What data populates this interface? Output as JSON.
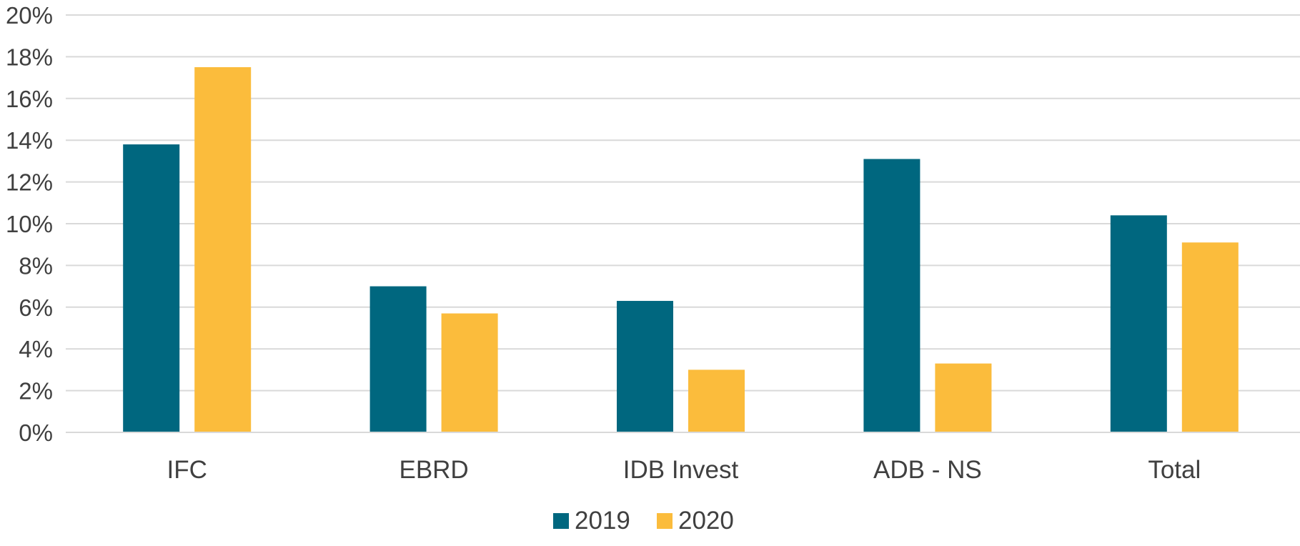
{
  "chart_data": {
    "type": "bar",
    "categories": [
      "IFC",
      "EBRD",
      "IDB Invest",
      "ADB - NS",
      "Total"
    ],
    "series": [
      {
        "name": "2019",
        "color": "#00677f",
        "values": [
          13.8,
          7.0,
          6.3,
          13.1,
          10.4
        ]
      },
      {
        "name": "2020",
        "color": "#fbbc3c",
        "values": [
          17.5,
          5.7,
          3.0,
          3.3,
          9.1
        ]
      }
    ],
    "ylim": [
      0,
      20
    ],
    "yticks": [
      0,
      2,
      4,
      6,
      8,
      10,
      12,
      14,
      16,
      18,
      20
    ],
    "ytick_labels": [
      "0%",
      "2%",
      "4%",
      "6%",
      "8%",
      "10%",
      "12%",
      "14%",
      "16%",
      "18%",
      "20%"
    ],
    "grid": true,
    "gridline_color": "#d9d9d9",
    "legend_position": "bottom-center",
    "title": "",
    "xlabel": "",
    "ylabel": ""
  }
}
